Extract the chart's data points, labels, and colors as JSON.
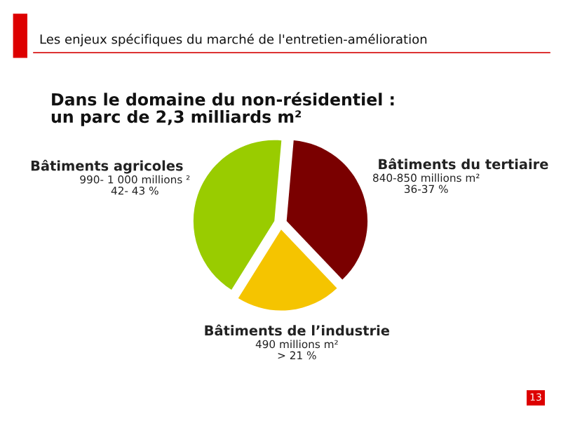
{
  "chart_data": {
    "type": "pie",
    "title": "Les enjeux spécifiques du marché de l'entretien-amélioration",
    "subtitle": "Dans le domaine du non-résidentiel :\nun parc de 2,3 milliards m²",
    "categories": [
      "Bâtiments du tertiaire",
      "Bâtiments de l’industrie",
      "Bâtiments agricoles"
    ],
    "values": [
      36.5,
      21,
      42.5
    ],
    "colors": [
      "#7a0000",
      "#f5c400",
      "#99cc00"
    ],
    "value_labels": [
      "840-850 millions m²\n36-37 %",
      "490 millions m²\n> 21 %",
      "990- 1 000 millions ²\n42- 43 %"
    ],
    "annotations": [
      "13"
    ],
    "legend": false
  }
}
